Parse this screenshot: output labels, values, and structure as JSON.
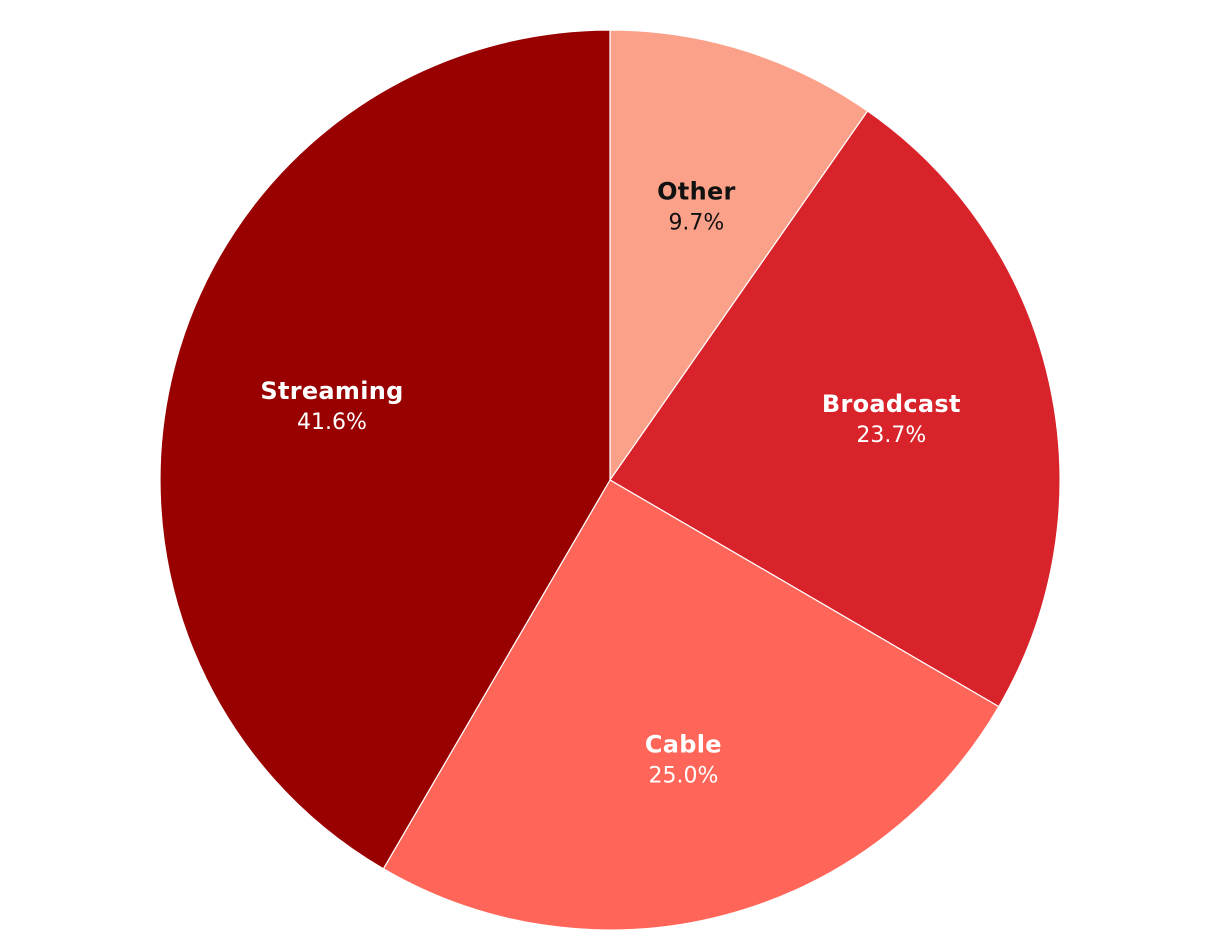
{
  "chart_data": {
    "type": "pie",
    "title": "",
    "start_angle_deg": 0,
    "direction": "clockwise",
    "slices": [
      {
        "label": "Other",
        "value": 9.7,
        "value_label": "9.7%",
        "color": "#FCA189",
        "text_color": "#111111"
      },
      {
        "label": "Broadcast",
        "value": 23.7,
        "value_label": "23.7%",
        "color": "#D8232A",
        "text_color": "#ffffff"
      },
      {
        "label": "Cable",
        "value": 25.0,
        "value_label": "25.0%",
        "color": "#FF6659",
        "text_color": "#ffffff"
      },
      {
        "label": "Streaming",
        "value": 41.6,
        "value_label": "41.6%",
        "color": "#990000",
        "text_color": "#ffffff"
      }
    ]
  }
}
